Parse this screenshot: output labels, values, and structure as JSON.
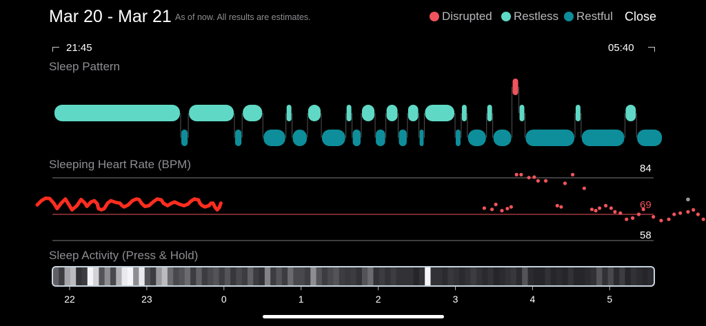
{
  "header": {
    "title": "Mar 20 - Mar 21",
    "subtitle": "As of now. All results are estimates.",
    "legend": [
      {
        "label": "Disrupted",
        "color": "#f0545c"
      },
      {
        "label": "Restless",
        "color": "#5fd9c5"
      },
      {
        "label": "Restful",
        "color": "#0e8e9a"
      }
    ],
    "close_label": "Close"
  },
  "sleep_window": {
    "start": "21:45",
    "end": "05:40"
  },
  "sleep_pattern": {
    "title": "Sleep Pattern",
    "segments": [
      {
        "state": "restless",
        "start": 0.0,
        "end": 1.65
      },
      {
        "state": "restful",
        "start": 1.65,
        "end": 1.75
      },
      {
        "state": "restless",
        "start": 1.75,
        "end": 2.35
      },
      {
        "state": "restful",
        "start": 2.35,
        "end": 2.45
      },
      {
        "state": "restless",
        "start": 2.45,
        "end": 2.72
      },
      {
        "state": "restful",
        "start": 2.72,
        "end": 3.02
      },
      {
        "state": "restless",
        "start": 3.02,
        "end": 3.1
      },
      {
        "state": "restful",
        "start": 3.1,
        "end": 3.3
      },
      {
        "state": "restless",
        "start": 3.3,
        "end": 3.48
      },
      {
        "state": "restful",
        "start": 3.48,
        "end": 3.8
      },
      {
        "state": "restless",
        "start": 3.8,
        "end": 3.88
      },
      {
        "state": "restful",
        "start": 3.88,
        "end": 4.0
      },
      {
        "state": "restless",
        "start": 4.0,
        "end": 4.18
      },
      {
        "state": "restful",
        "start": 4.18,
        "end": 4.32
      },
      {
        "state": "restless",
        "start": 4.32,
        "end": 4.48
      },
      {
        "state": "restful",
        "start": 4.48,
        "end": 4.6
      },
      {
        "state": "restless",
        "start": 4.6,
        "end": 4.75
      },
      {
        "state": "restful",
        "start": 4.75,
        "end": 4.82
      },
      {
        "state": "restless",
        "start": 4.82,
        "end": 5.22
      },
      {
        "state": "restful",
        "start": 5.22,
        "end": 5.3
      },
      {
        "state": "restless",
        "start": 5.3,
        "end": 5.38
      },
      {
        "state": "restful",
        "start": 5.38,
        "end": 5.63
      },
      {
        "state": "restless",
        "start": 5.63,
        "end": 5.71
      },
      {
        "state": "restful",
        "start": 5.71,
        "end": 5.96
      },
      {
        "state": "disrupted",
        "start": 5.96,
        "end": 6.05
      },
      {
        "state": "restless",
        "start": 6.05,
        "end": 6.13
      },
      {
        "state": "restful",
        "start": 6.13,
        "end": 6.78
      },
      {
        "state": "restless",
        "start": 6.78,
        "end": 6.86
      },
      {
        "state": "restful",
        "start": 6.86,
        "end": 7.43
      },
      {
        "state": "restless",
        "start": 7.43,
        "end": 7.58
      },
      {
        "state": "restful",
        "start": 7.58,
        "end": 7.92
      }
    ]
  },
  "heart_rate": {
    "title": "Sleeping Heart Rate (BPM)",
    "max_label": "84",
    "avg_label": "69",
    "min_label": "58",
    "max": 84,
    "avg": 69,
    "min": 58,
    "color": "#f0545c",
    "curve": [
      [
        -0.7,
        72.8
      ],
      [
        -0.6,
        74.5
      ],
      [
        -0.5,
        75.5
      ],
      [
        -0.4,
        75.4
      ],
      [
        -0.3,
        73.5
      ],
      [
        -0.22,
        71.3
      ],
      [
        -0.12,
        73.5
      ],
      [
        -0.02,
        75.2
      ],
      [
        0.08,
        72.5
      ],
      [
        0.14,
        70.8
      ],
      [
        0.26,
        72.5
      ],
      [
        0.36,
        75.0
      ],
      [
        0.45,
        73.6
      ],
      [
        0.5,
        72.2
      ],
      [
        0.6,
        74.0
      ],
      [
        0.68,
        74.5
      ],
      [
        0.75,
        73.3
      ],
      [
        0.78,
        71.3
      ],
      [
        0.85,
        70.8
      ],
      [
        0.92,
        71.3
      ],
      [
        1.0,
        73.5
      ],
      [
        1.08,
        74.5
      ],
      [
        1.2,
        73.8
      ],
      [
        1.3,
        73.5
      ],
      [
        1.35,
        72.5
      ],
      [
        1.4,
        72.0
      ],
      [
        1.5,
        72.8
      ],
      [
        1.6,
        74.5
      ],
      [
        1.7,
        75.2
      ],
      [
        1.76,
        75.0
      ],
      [
        1.82,
        73.5
      ],
      [
        1.9,
        72.2
      ],
      [
        2.0,
        72.5
      ],
      [
        2.1,
        74.0
      ],
      [
        2.2,
        75.2
      ],
      [
        2.3,
        74.8
      ],
      [
        2.35,
        73.5
      ],
      [
        2.45,
        72.5
      ],
      [
        2.55,
        73.5
      ],
      [
        2.62,
        74.0
      ],
      [
        2.75,
        73.0
      ],
      [
        2.85,
        72.5
      ],
      [
        2.95,
        73.2
      ],
      [
        3.02,
        74.4
      ],
      [
        3.1,
        75.2
      ],
      [
        3.2,
        74.8
      ],
      [
        3.23,
        73.5
      ],
      [
        3.28,
        72.6
      ],
      [
        3.35,
        72.0
      ],
      [
        3.45,
        72.5
      ],
      [
        3.5,
        73.5
      ],
      [
        3.55,
        73.5
      ],
      [
        3.6,
        71.8
      ],
      [
        3.65,
        70.8
      ],
      [
        3.7,
        71.7
      ],
      [
        3.74,
        73.5
      ]
    ],
    "dots": [
      [
        3.35,
        71.5
      ],
      [
        3.45,
        71.0
      ],
      [
        3.5,
        73.0
      ],
      [
        3.58,
        70.5
      ],
      [
        3.65,
        71.3
      ],
      [
        3.7,
        72.0
      ],
      [
        3.77,
        85.0
      ],
      [
        3.83,
        85.0
      ],
      [
        3.93,
        83.8
      ],
      [
        4.0,
        84.0
      ],
      [
        4.05,
        82.5
      ],
      [
        4.15,
        82.5
      ],
      [
        4.3,
        72.5
      ],
      [
        4.35,
        72.0
      ],
      [
        4.4,
        81.5
      ],
      [
        4.5,
        85.0
      ],
      [
        4.65,
        79.5
      ],
      [
        4.75,
        71.0
      ],
      [
        4.8,
        70.5
      ],
      [
        4.85,
        71.5
      ],
      [
        4.93,
        72.5
      ],
      [
        5.0,
        71.5
      ],
      [
        5.05,
        70.0
      ],
      [
        5.12,
        69.5
      ],
      [
        5.2,
        67.0
      ],
      [
        5.28,
        67.5
      ],
      [
        5.36,
        69.0
      ],
      [
        5.42,
        71.0
      ],
      [
        5.55,
        68.0
      ],
      [
        5.65,
        66.5
      ],
      [
        5.75,
        67.0
      ],
      [
        5.82,
        69.0
      ],
      [
        5.9,
        69.5
      ],
      [
        6.0,
        70.0
      ],
      [
        6.07,
        70.8
      ],
      [
        6.13,
        69.0
      ],
      [
        6.2,
        67.0
      ],
      [
        6.3,
        68.0
      ],
      [
        6.38,
        69.0
      ],
      [
        6.45,
        69.5
      ],
      [
        6.55,
        70.0
      ],
      [
        6.6,
        71.0
      ],
      [
        6.72,
        70.0
      ],
      [
        6.8,
        68.5
      ],
      [
        6.88,
        67.5
      ],
      [
        6.95,
        66.5
      ],
      [
        7.03,
        66.0
      ],
      [
        7.12,
        65.5
      ],
      [
        7.2,
        66.0
      ],
      [
        7.3,
        66.0
      ],
      [
        7.4,
        66.5
      ],
      [
        7.5,
        67.0
      ],
      [
        7.57,
        68.0
      ],
      [
        7.62,
        67.0
      ],
      [
        7.72,
        66.0
      ],
      [
        7.78,
        65.5
      ],
      [
        7.85,
        65.5
      ],
      [
        7.95,
        65.0
      ],
      [
        8.05,
        65.5
      ],
      [
        8.12,
        65.0
      ],
      [
        8.22,
        64.5
      ],
      [
        8.3,
        65.0
      ],
      [
        8.38,
        64.5
      ],
      [
        8.48,
        63.5
      ],
      [
        8.55,
        63.0
      ],
      [
        8.65,
        62.5
      ],
      [
        8.75,
        62.5
      ],
      [
        8.85,
        63.0
      ],
      [
        8.95,
        63.5
      ],
      [
        9.02,
        64.5
      ],
      [
        9.05,
        63.5
      ],
      [
        9.1,
        63.5
      ],
      [
        9.18,
        63.0
      ],
      [
        9.24,
        61.5
      ],
      [
        9.28,
        61.0
      ],
      [
        9.35,
        61.0
      ],
      [
        9.45,
        61.0
      ],
      [
        9.55,
        60.5
      ],
      [
        9.62,
        61.0
      ],
      [
        9.7,
        61.0
      ],
      [
        9.78,
        60.5
      ],
      [
        9.85,
        60.0
      ],
      [
        9.92,
        60.5
      ],
      [
        10.0,
        61.0
      ],
      [
        10.05,
        60.5
      ],
      [
        10.1,
        61.0
      ],
      [
        10.15,
        61.0
      ],
      [
        10.2,
        61.0
      ],
      [
        10.25,
        60.5
      ]
    ],
    "gray_dot": {
      "t": 6.0,
      "bpm": 75.0
    }
  },
  "sleep_activity": {
    "title": "Sleep Activity (Press & Hold)",
    "levels": [
      0.35,
      0.2,
      0.65,
      0.75,
      0.15,
      0.2,
      1.0,
      0.85,
      0.3,
      0.55,
      0.25,
      0.7,
      0.95,
      1.0,
      0.55,
      0.95,
      0.3,
      0.2,
      0.6,
      0.75,
      0.4,
      0.25,
      0.3,
      0.4,
      0.2,
      0.35,
      0.2,
      0.25,
      0.3,
      0.2,
      0.3,
      0.18,
      0.25,
      0.2,
      0.35,
      0.2,
      0.15,
      0.5,
      0.2,
      0.3,
      0.2,
      0.4,
      0.25,
      0.25,
      0.2,
      0.55,
      0.3,
      0.2,
      0.25,
      0.3,
      0.2,
      0.18,
      0.2,
      0.15,
      0.3,
      0.4,
      0.15,
      0.2,
      0.15,
      0.2,
      0.15,
      0.15,
      0.15,
      0.1,
      0.15,
      1.0,
      0.15,
      0.15,
      0.12,
      0.18,
      0.15,
      0.12,
      0.15,
      0.2,
      0.15,
      0.12,
      0.15,
      0.1,
      0.12,
      0.15,
      0.18,
      0.12,
      0.3,
      0.12,
      0.1,
      0.1,
      0.15,
      0.1,
      0.12,
      0.1,
      0.15,
      0.1,
      0.1,
      0.12,
      0.15,
      0.3,
      0.15,
      0.25,
      0.12,
      0.2,
      0.1,
      0.15,
      0.12,
      0.1,
      0.12
    ],
    "axis_labels": [
      "22",
      "23",
      "0",
      "1",
      "2",
      "3",
      "4",
      "5"
    ]
  }
}
